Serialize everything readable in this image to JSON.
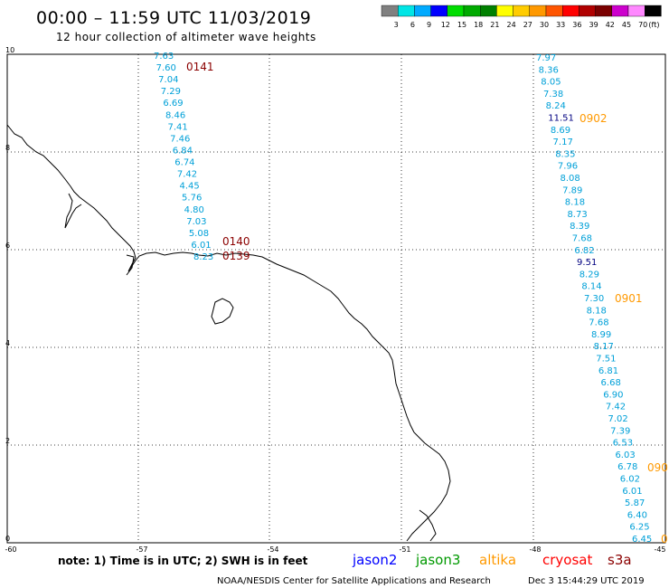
{
  "title": "00:00 – 11:59 UTC 11/03/2019",
  "subtitle": "12 hour collection of altimeter wave heights",
  "colorbar": {
    "unit": "(ft)",
    "swatches": [
      {
        "color": "#808080",
        "label": "3"
      },
      {
        "color": "#00e5e5",
        "label": "6"
      },
      {
        "color": "#00aaff",
        "label": "9"
      },
      {
        "color": "#0000ff",
        "label": "12"
      },
      {
        "color": "#00dd00",
        "label": "15"
      },
      {
        "color": "#00aa00",
        "label": "18"
      },
      {
        "color": "#008000",
        "label": "21"
      },
      {
        "color": "#ffff00",
        "label": "24"
      },
      {
        "color": "#ffcc00",
        "label": "27"
      },
      {
        "color": "#ff9900",
        "label": "30"
      },
      {
        "color": "#ff5500",
        "label": "33"
      },
      {
        "color": "#ff0000",
        "label": "36"
      },
      {
        "color": "#b00000",
        "label": "39"
      },
      {
        "color": "#7a0000",
        "label": "42"
      },
      {
        "color": "#cc00cc",
        "label": "45"
      },
      {
        "color": "#ff88ff",
        "label": "70"
      },
      {
        "color": "#000000",
        "label": ""
      }
    ]
  },
  "axes": {
    "x_ticks": [
      "-60",
      "-57",
      "-54",
      "-51",
      "-48",
      "-45"
    ],
    "y_ticks": [
      "0",
      "2",
      "4",
      "6",
      "8",
      "10"
    ]
  },
  "passes": [
    {
      "label": "0141",
      "color": "#8b0000"
    },
    {
      "label": "0140",
      "color": "#8b0000"
    },
    {
      "label": "0139",
      "color": "#8b0000"
    },
    {
      "label": "0902",
      "color": "#ff9900"
    },
    {
      "label": "0901",
      "color": "#ff9900"
    },
    {
      "label": "090",
      "color": "#ff9900"
    },
    {
      "label": "0",
      "color": "#ff9900"
    }
  ],
  "observations": {
    "left_track": [
      "7.63",
      "7.60",
      "7.04",
      "7.29",
      "6.69",
      "8.46",
      "7.41",
      "7.46",
      "6.84",
      "6.74",
      "7.42",
      "4.45",
      "5.76",
      "4.80",
      "7.03",
      "5.08",
      "6.01",
      "8.23"
    ],
    "right_track": [
      "7.97",
      "8.36",
      "8.05",
      "7.38",
      "8.24",
      "11.51",
      "8.69",
      "7.17",
      "8.35",
      "7.96",
      "8.08",
      "7.89",
      "8.18",
      "8.73",
      "8.39",
      "7.68",
      "6.82",
      "9.51",
      "8.29",
      "8.14",
      "7.30",
      "8.18",
      "7.68",
      "8.99",
      "8.17",
      "7.51",
      "6.81",
      "6.68",
      "6.90",
      "7.42",
      "7.02",
      "7.39",
      "6.53",
      "6.03",
      "6.78",
      "6.02",
      "6.01",
      "5.87",
      "6.40",
      "6.25",
      "6.45"
    ],
    "obs_color": "#00a0d8",
    "highlight_color": "#000080"
  },
  "footer": {
    "note": "note: 1) Time is in UTC; 2) SWH is in feet",
    "satellites": [
      {
        "name": "jason2",
        "color": "#0000ff"
      },
      {
        "name": "jason3",
        "color": "#009900"
      },
      {
        "name": "altika",
        "color": "#ff9900"
      },
      {
        "name": "cryosat",
        "color": "#ff0000"
      },
      {
        "name": "s3a",
        "color": "#8b0000"
      }
    ],
    "credit": "NOAA/NESDIS Center for Satellite Applications and Research",
    "timestamp": "Dec  3 15:44:29 UTC 2019"
  }
}
